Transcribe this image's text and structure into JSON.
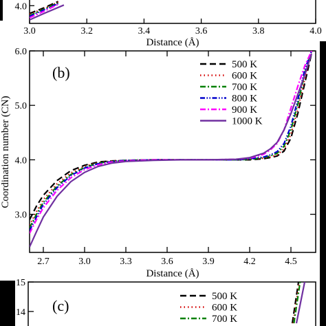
{
  "chart_data": [
    {
      "type": "line",
      "panel": "top (cropped)",
      "xlabel": "Distance (Å)",
      "xlim": [
        3.0,
        4.0
      ],
      "ylim": [
        3.5,
        4.2
      ],
      "xticks": [
        "3.0",
        "3.2",
        "3.4",
        "3.6",
        "3.8",
        "4.0"
      ],
      "yticks": [
        "4.0"
      ],
      "series": [
        {
          "name": "500 K",
          "color": "#000000",
          "dash": "long-dash",
          "x": [
            3.0,
            3.05,
            3.1
          ],
          "y": [
            3.78,
            3.94,
            4.12
          ]
        },
        {
          "name": "600 K",
          "color": "#d40000",
          "dash": "dot",
          "x": [
            3.0,
            3.05,
            3.1
          ],
          "y": [
            3.76,
            3.92,
            4.1
          ]
        },
        {
          "name": "700 K",
          "color": "#008000",
          "dash": "dash-dot",
          "x": [
            3.0,
            3.05,
            3.1
          ],
          "y": [
            3.72,
            3.9,
            4.08
          ]
        },
        {
          "name": "800 K",
          "color": "#0000cc",
          "dash": "dash-dot-dot",
          "x": [
            3.0,
            3.05,
            3.1
          ],
          "y": [
            3.7,
            3.88,
            4.06
          ]
        },
        {
          "name": "900 K",
          "color": "#ff00ff",
          "dash": "dash-dot",
          "x": [
            3.0,
            3.05,
            3.1
          ],
          "y": [
            3.66,
            3.84,
            4.04
          ]
        },
        {
          "name": "1000 K",
          "color": "#7030a0",
          "dash": "solid",
          "x": [
            3.0,
            3.05,
            3.12
          ],
          "y": [
            3.6,
            3.78,
            4.02
          ]
        }
      ]
    },
    {
      "type": "line",
      "panel_label": "(b)",
      "xlabel": "Distance (Å)",
      "ylabel": "Coordination number (CN)",
      "xlim": [
        2.6,
        4.68
      ],
      "ylim": [
        2.3,
        6.0
      ],
      "xticks": [
        "2.7",
        "3.0",
        "3.3",
        "3.6",
        "3.9",
        "4.2",
        "4.5"
      ],
      "yticks": [
        "3.0",
        "4.0",
        "5.0",
        "6.0"
      ],
      "legend": "top-right",
      "series": [
        {
          "name": "500 K",
          "color": "#000000",
          "dash": "long-dash",
          "x": [
            2.6,
            2.65,
            2.7,
            2.8,
            2.9,
            3.0,
            3.1,
            3.2,
            3.3,
            3.5,
            3.7,
            3.9,
            4.1,
            4.2,
            4.3,
            4.35,
            4.4,
            4.45,
            4.5,
            4.55,
            4.6,
            4.65
          ],
          "y": [
            2.9,
            3.15,
            3.35,
            3.62,
            3.8,
            3.9,
            3.96,
            3.98,
            3.99,
            4.0,
            4.0,
            4.0,
            4.0,
            4.0,
            4.02,
            4.04,
            4.07,
            4.16,
            4.4,
            4.85,
            5.4,
            5.95
          ]
        },
        {
          "name": "600 K",
          "color": "#d40000",
          "dash": "dot",
          "x": [
            2.6,
            2.65,
            2.7,
            2.8,
            2.9,
            3.0,
            3.1,
            3.2,
            3.3,
            3.5,
            3.7,
            3.9,
            4.1,
            4.2,
            4.3,
            4.35,
            4.4,
            4.45,
            4.5,
            4.55,
            4.6,
            4.65
          ],
          "y": [
            2.8,
            3.05,
            3.27,
            3.56,
            3.76,
            3.88,
            3.95,
            3.98,
            3.99,
            4.0,
            4.0,
            4.0,
            4.0,
            4.01,
            4.03,
            4.05,
            4.09,
            4.2,
            4.47,
            4.93,
            5.48,
            6.0
          ]
        },
        {
          "name": "700 K",
          "color": "#008000",
          "dash": "dash-dot",
          "x": [
            2.6,
            2.65,
            2.7,
            2.8,
            2.9,
            3.0,
            3.1,
            3.2,
            3.3,
            3.5,
            3.7,
            3.9,
            4.1,
            4.2,
            4.3,
            4.35,
            4.4,
            4.45,
            4.5,
            4.55,
            4.6,
            4.65
          ],
          "y": [
            2.75,
            3.0,
            3.22,
            3.52,
            3.73,
            3.86,
            3.94,
            3.97,
            3.99,
            4.0,
            4.0,
            4.0,
            4.0,
            4.01,
            4.04,
            4.07,
            4.12,
            4.25,
            4.55,
            5.02,
            5.58,
            6.0
          ]
        },
        {
          "name": "800 K",
          "color": "#0000cc",
          "dash": "dash-dot-dot",
          "x": [
            2.6,
            2.65,
            2.7,
            2.8,
            2.9,
            3.0,
            3.1,
            3.2,
            3.3,
            3.5,
            3.7,
            3.9,
            4.1,
            4.2,
            4.3,
            4.35,
            4.4,
            4.45,
            4.5,
            4.55,
            4.6,
            4.65
          ],
          "y": [
            2.7,
            2.95,
            3.18,
            3.49,
            3.71,
            3.85,
            3.93,
            3.97,
            3.99,
            4.0,
            4.0,
            4.0,
            4.0,
            4.02,
            4.05,
            4.09,
            4.15,
            4.3,
            4.62,
            5.1,
            5.65,
            6.0
          ]
        },
        {
          "name": "900 K",
          "color": "#ff00ff",
          "dash": "dash-dot",
          "x": [
            2.6,
            2.65,
            2.7,
            2.8,
            2.9,
            3.0,
            3.1,
            3.2,
            3.3,
            3.5,
            3.7,
            3.9,
            4.1,
            4.2,
            4.3,
            4.35,
            4.4,
            4.45,
            4.5,
            4.55,
            4.6,
            4.65
          ],
          "y": [
            2.65,
            2.9,
            3.12,
            3.44,
            3.67,
            3.82,
            3.91,
            3.96,
            3.98,
            4.0,
            4.0,
            4.0,
            4.01,
            4.03,
            4.1,
            4.18,
            4.3,
            4.55,
            4.95,
            5.35,
            5.72,
            6.0
          ]
        },
        {
          "name": "1000 K",
          "color": "#7030a0",
          "dash": "solid",
          "x": [
            2.6,
            2.65,
            2.7,
            2.8,
            2.9,
            3.0,
            3.1,
            3.2,
            3.3,
            3.5,
            3.7,
            3.9,
            4.1,
            4.2,
            4.3,
            4.35,
            4.4,
            4.45,
            4.5,
            4.55,
            4.6,
            4.65
          ],
          "y": [
            2.4,
            2.68,
            2.95,
            3.33,
            3.6,
            3.77,
            3.88,
            3.94,
            3.97,
            3.99,
            4.0,
            4.0,
            4.01,
            4.04,
            4.12,
            4.2,
            4.32,
            4.55,
            4.85,
            5.2,
            5.55,
            5.95
          ]
        }
      ]
    },
    {
      "type": "line",
      "panel_label": "(c)",
      "panel": "bottom (cropped)",
      "ylim": [
        13.6,
        15.0
      ],
      "yticks": [
        "14",
        "15"
      ],
      "series": [
        {
          "name": "500 K",
          "color": "#000000",
          "dash": "long-dash",
          "x": [
            0.0,
            0.15
          ],
          "y": [
            13.6,
            15.0
          ]
        },
        {
          "name": "600 K",
          "color": "#d40000",
          "dash": "dot",
          "x": [
            0.02,
            0.17
          ],
          "y": [
            13.6,
            15.0
          ]
        },
        {
          "name": "700 K",
          "color": "#008000",
          "dash": "dash-dot",
          "x": [
            0.04,
            0.19
          ],
          "y": [
            13.6,
            15.0
          ]
        },
        {
          "name": "1000 K",
          "color": "#7030a0",
          "dash": "solid",
          "x": [
            0.1,
            0.3
          ],
          "y": [
            13.6,
            15.0
          ]
        }
      ]
    }
  ]
}
